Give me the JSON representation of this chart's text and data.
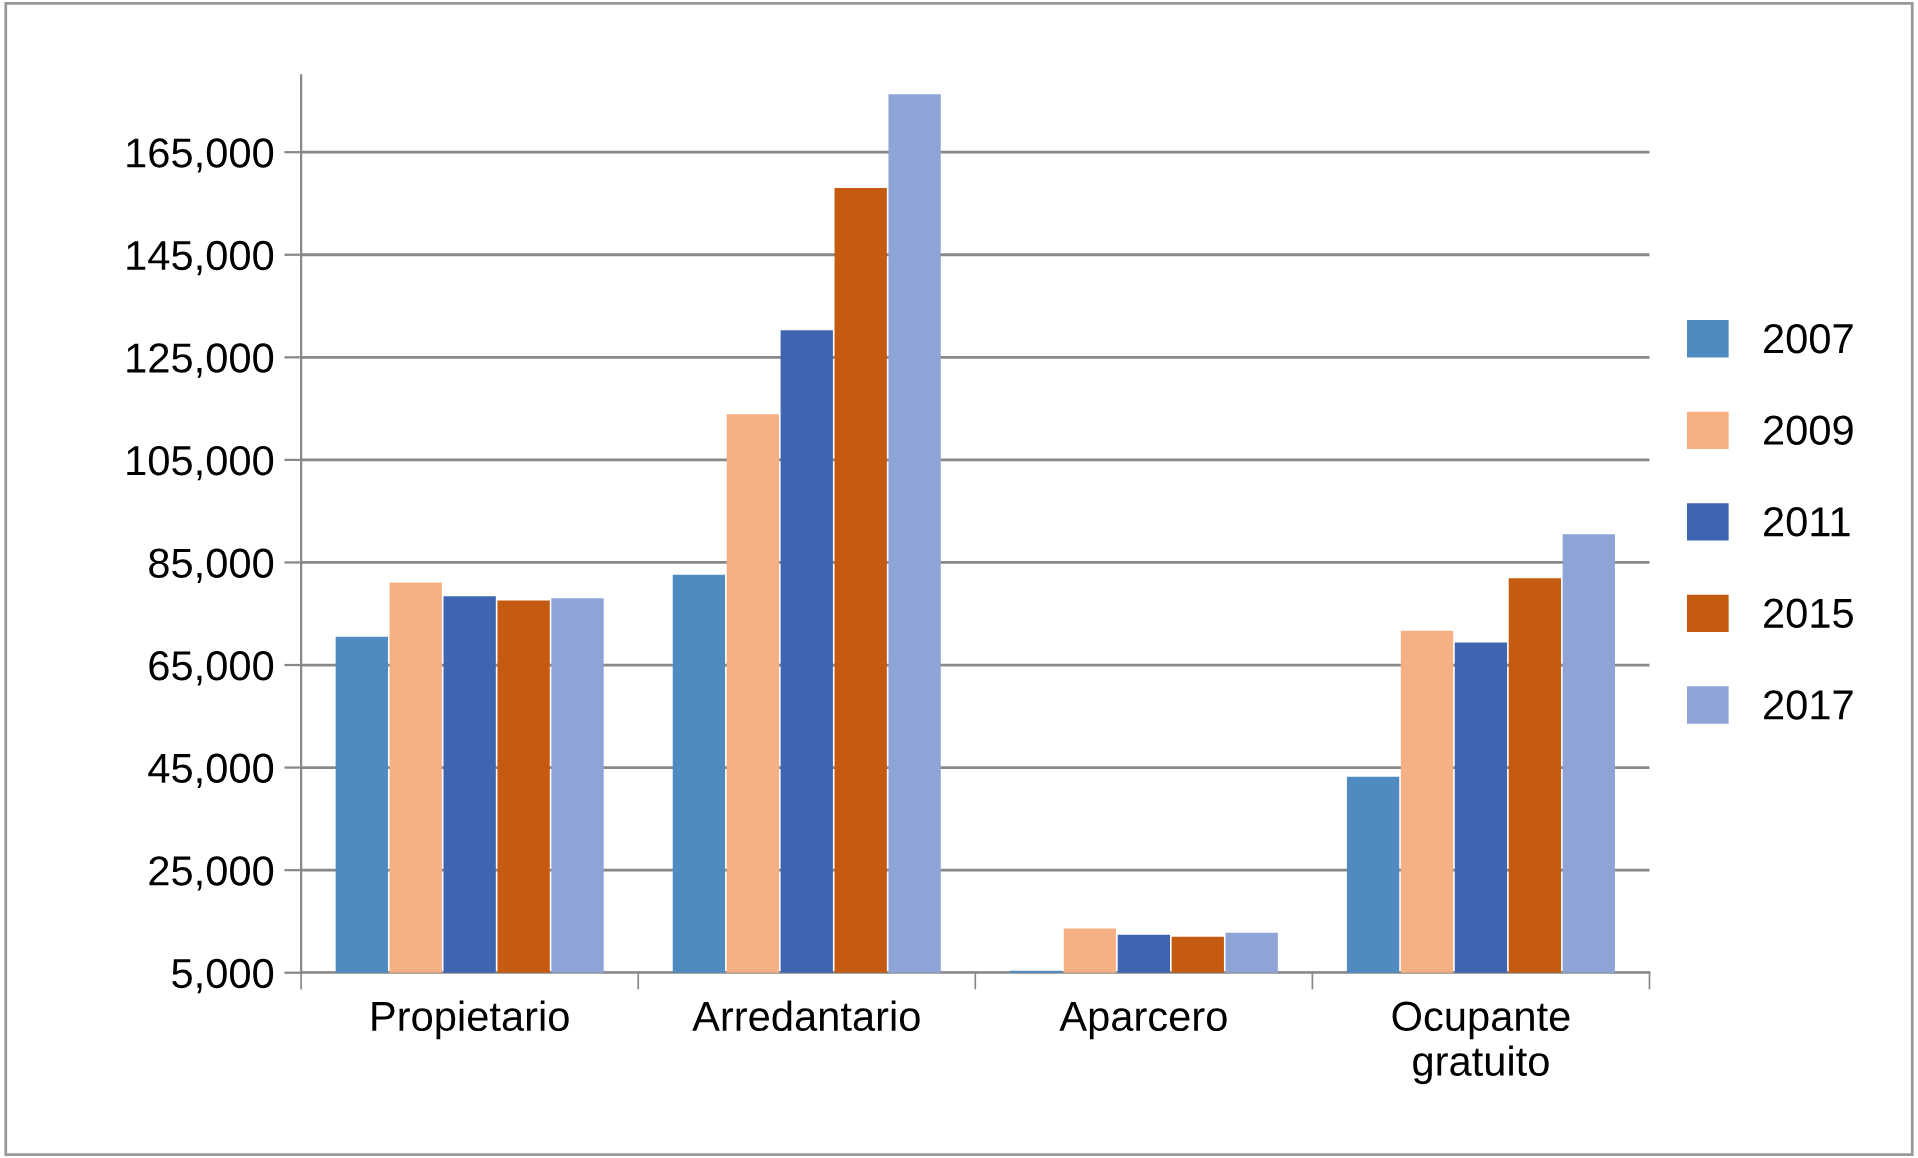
{
  "chart_data": {
    "type": "bar",
    "categories": [
      "Propietario",
      "Arredantario",
      "Aparcero",
      "Ocupante\ngratuito"
    ],
    "series": [
      {
        "name": "2007",
        "color": "#4f8bc0",
        "values": [
          70500,
          82600,
          5400,
          43200
        ]
      },
      {
        "name": "2009",
        "color": "#f5b183",
        "values": [
          81100,
          113900,
          13600,
          71700
        ]
      },
      {
        "name": "2011",
        "color": "#3f65b0",
        "values": [
          78400,
          130300,
          12400,
          69400
        ]
      },
      {
        "name": "2015",
        "color": "#c55a11",
        "values": [
          77600,
          158000,
          12000,
          81900
        ]
      },
      {
        "name": "2017",
        "color": "#8fa4d6",
        "values": [
          78000,
          176300,
          12800,
          90500
        ]
      }
    ],
    "ylim": [
      5000,
      180000
    ],
    "yticks": [
      {
        "value": 5000,
        "label": "5,000"
      },
      {
        "value": 25000,
        "label": "25,000"
      },
      {
        "value": 45000,
        "label": "45,000"
      },
      {
        "value": 65000,
        "label": "65,000"
      },
      {
        "value": 85000,
        "label": "85,000"
      },
      {
        "value": 105000,
        "label": "105,000"
      },
      {
        "value": 125000,
        "label": "125,000"
      },
      {
        "value": 145000,
        "label": "145,000"
      },
      {
        "value": 165000,
        "label": "165,000"
      }
    ],
    "grid": "y",
    "legend": "right"
  }
}
